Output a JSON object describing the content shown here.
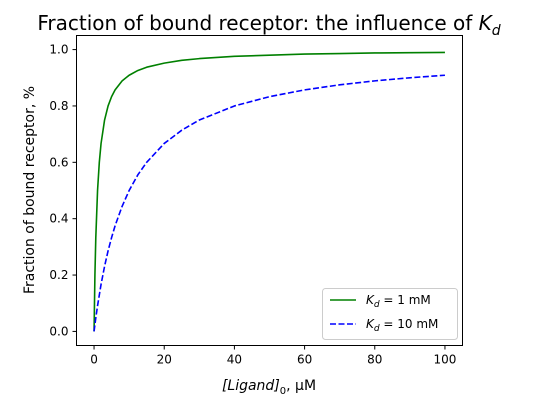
{
  "chart_data": {
    "type": "line",
    "title": {
      "prefix": "Fraction of bound receptor: the influence of ",
      "symbol": "K",
      "subscript": "d"
    },
    "xlabel": {
      "symbol": "[Ligand]",
      "subscript": "0",
      "suffix": ", μM"
    },
    "ylabel": "Fraction of bound receptor, %",
    "xlim": [
      -5,
      105
    ],
    "ylim": [
      -0.05,
      1.05
    ],
    "xticks": [
      0,
      20,
      40,
      60,
      80,
      100
    ],
    "yticks": [
      0.0,
      0.2,
      0.4,
      0.6,
      0.8,
      1.0
    ],
    "xtick_labels": [
      "0",
      "20",
      "40",
      "60",
      "80",
      "100"
    ],
    "ytick_labels": [
      "0.0",
      "0.2",
      "0.4",
      "0.6",
      "0.8",
      "1.0"
    ],
    "grid": false,
    "legend_position": "lower-right",
    "series": [
      {
        "label": {
          "symbol": "K",
          "subscript": "d",
          "suffix": " = 1 mM"
        },
        "color": "#008000",
        "line_style": "solid",
        "x": [
          0,
          0.25,
          0.5,
          1,
          1.5,
          2,
          3,
          4,
          5,
          6,
          8,
          10,
          12.5,
          15,
          20,
          25,
          30,
          40,
          50,
          60,
          70,
          80,
          90,
          100
        ],
        "y": [
          0,
          0.2,
          0.333,
          0.5,
          0.6,
          0.667,
          0.75,
          0.8,
          0.833,
          0.857,
          0.889,
          0.909,
          0.926,
          0.9375,
          0.952,
          0.962,
          0.968,
          0.976,
          0.98,
          0.984,
          0.986,
          0.988,
          0.989,
          0.99
        ]
      },
      {
        "label": {
          "symbol": "K",
          "subscript": "d",
          "suffix": " = 10 mM"
        },
        "color": "#0000ff",
        "line_style": "dashed",
        "x": [
          0,
          0.5,
          1,
          2,
          3,
          4,
          5,
          6,
          8,
          10,
          12.5,
          15,
          20,
          25,
          30,
          40,
          50,
          60,
          70,
          80,
          90,
          100
        ],
        "y": [
          0,
          0.048,
          0.091,
          0.167,
          0.231,
          0.286,
          0.333,
          0.375,
          0.444,
          0.5,
          0.556,
          0.6,
          0.667,
          0.714,
          0.75,
          0.8,
          0.833,
          0.857,
          0.875,
          0.889,
          0.9,
          0.909
        ]
      }
    ]
  }
}
